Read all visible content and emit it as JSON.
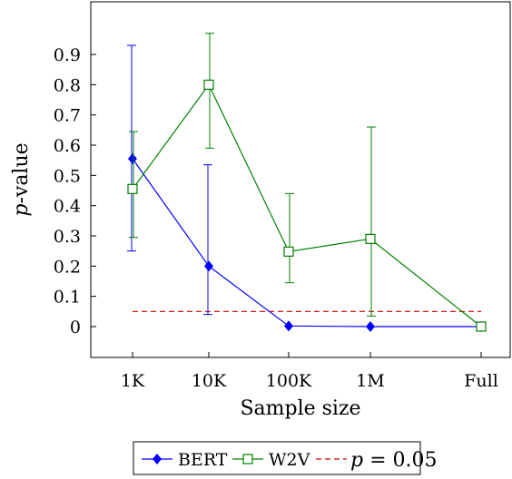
{
  "chart_data": {
    "type": "line",
    "xlabel": "Sample size",
    "ylabel_italic": "p",
    "ylabel_rest": "-value",
    "categories": [
      "1K",
      "10K",
      "100K",
      "1M",
      "Full"
    ],
    "yticks": [
      "0",
      "0.1",
      "0.2",
      "0.3",
      "0.4",
      "0.5",
      "0.6",
      "0.7",
      "0.8",
      "0.9"
    ],
    "ylim": [
      -0.1,
      1.05
    ],
    "grid": false,
    "legend_position": "bottom-center",
    "series": [
      {
        "name": "BERT",
        "color": "#0000ff",
        "marker": "filled-diamond",
        "values": [
          0.555,
          0.2,
          0.002,
          0.0,
          0.0
        ],
        "error_low": [
          0.25,
          0.04,
          0.0,
          0.0,
          0.0
        ],
        "error_high": [
          0.93,
          0.535,
          0.0,
          0.0,
          0.0
        ]
      },
      {
        "name": "W2V",
        "color": "#008000",
        "marker": "open-square",
        "values": [
          0.455,
          0.8,
          0.248,
          0.29,
          0.0
        ],
        "error_low": [
          0.295,
          0.59,
          0.145,
          0.035,
          0.0
        ],
        "error_high": [
          0.645,
          0.97,
          0.44,
          0.66,
          0.0
        ]
      }
    ],
    "reference_line": {
      "value": 0.05,
      "color": "#cc0000",
      "label_var": "p",
      "label_rest": " = 0.05"
    }
  }
}
